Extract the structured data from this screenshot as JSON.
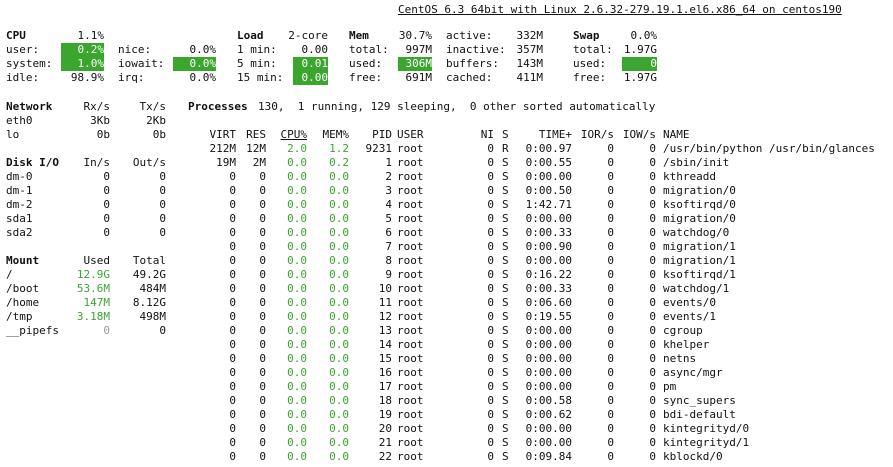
{
  "header": {
    "system_info": "CentOS 6.3 64bit with Linux 2.6.32-279.19.1.el6.x86_64 on centos190"
  },
  "cpu": {
    "title": "CPU",
    "total": "1.1%",
    "user_label": "user:",
    "user": "0.2%",
    "nice_label": "nice:",
    "nice": "0.0%",
    "system_label": "system:",
    "system": "1.0%",
    "iowait_label": "iowait:",
    "iowait": "0.0%",
    "idle_label": "idle:",
    "idle": "98.9%",
    "irq_label": "irq:",
    "irq": "0.0%"
  },
  "load": {
    "title": "Load",
    "cores": "2-core",
    "min1_label": "1 min:",
    "min1": "0.00",
    "min5_label": "5 min:",
    "min5": "0.01",
    "min15_label": "15 min:",
    "min15": "0.00"
  },
  "mem": {
    "title": "Mem",
    "percent": "30.7%",
    "total_label": "total:",
    "total": "997M",
    "used_label": "used:",
    "used": "306M",
    "free_label": "free:",
    "free": "691M",
    "active_label": "active:",
    "active": "332M",
    "inactive_label": "inactive:",
    "inactive": "357M",
    "buffers_label": "buffers:",
    "buffers": "143M",
    "cached_label": "cached:",
    "cached": "411M"
  },
  "swap": {
    "title": "Swap",
    "percent": "0.0%",
    "total_label": "total:",
    "total": "1.97G",
    "used_label": "used:",
    "used": "0",
    "free_label": "free:",
    "free": "1.97G"
  },
  "network": {
    "title": "Network",
    "rx_header": "Rx/s",
    "tx_header": "Tx/s",
    "rows": [
      {
        "name": "eth0",
        "rx": "3Kb",
        "tx": "2Kb"
      },
      {
        "name": "lo",
        "rx": "0b",
        "tx": "0b"
      }
    ]
  },
  "disk": {
    "title": "Disk I/O",
    "in_header": "In/s",
    "out_header": "Out/s",
    "rows": [
      {
        "name": "dm-0",
        "in": "0",
        "out": "0"
      },
      {
        "name": "dm-1",
        "in": "0",
        "out": "0"
      },
      {
        "name": "dm-2",
        "in": "0",
        "out": "0"
      },
      {
        "name": "sda1",
        "in": "0",
        "out": "0"
      },
      {
        "name": "sda2",
        "in": "0",
        "out": "0"
      }
    ]
  },
  "mount": {
    "title": "Mount",
    "used_header": "Used",
    "total_header": "Total",
    "rows": [
      {
        "name": "/",
        "used": "12.9G",
        "total": "49.2G"
      },
      {
        "name": "/boot",
        "used": "53.6M",
        "total": "484M"
      },
      {
        "name": "/home",
        "used": "147M",
        "total": "8.12G"
      },
      {
        "name": "/tmp",
        "used": "3.18M",
        "total": "498M"
      },
      {
        "name": "__pipefs",
        "used": "0",
        "total": "0"
      }
    ]
  },
  "processes": {
    "summary_label": "Processes",
    "summary": "130,  1 running, 129 sleeping,  0 other sorted automatically",
    "columns": {
      "virt": "VIRT",
      "res": "RES",
      "cpu": "CPU%",
      "mem": "MEM%",
      "pid": "PID",
      "user": "USER",
      "ni": "NI",
      "s": "S",
      "time": "TIME+",
      "ior": "IOR/s",
      "iow": "IOW/s",
      "name": "NAME"
    },
    "rows": [
      {
        "virt": "212M",
        "res": "12M",
        "cpu": "2.0",
        "mem": "1.2",
        "pid": "9231",
        "user": "root",
        "ni": "0",
        "s": "R",
        "time": "0:00.97",
        "ior": "0",
        "iow": "0",
        "name": "/usr/bin/python /usr/bin/glances"
      },
      {
        "virt": "19M",
        "res": "2M",
        "cpu": "0.0",
        "mem": "0.2",
        "pid": "1",
        "user": "root",
        "ni": "0",
        "s": "S",
        "time": "0:00.55",
        "ior": "0",
        "iow": "0",
        "name": "/sbin/init"
      },
      {
        "virt": "0",
        "res": "0",
        "cpu": "0.0",
        "mem": "0.0",
        "pid": "2",
        "user": "root",
        "ni": "0",
        "s": "S",
        "time": "0:00.00",
        "ior": "0",
        "iow": "0",
        "name": "kthreadd"
      },
      {
        "virt": "0",
        "res": "0",
        "cpu": "0.0",
        "mem": "0.0",
        "pid": "3",
        "user": "root",
        "ni": "0",
        "s": "S",
        "time": "0:00.50",
        "ior": "0",
        "iow": "0",
        "name": "migration/0"
      },
      {
        "virt": "0",
        "res": "0",
        "cpu": "0.0",
        "mem": "0.0",
        "pid": "4",
        "user": "root",
        "ni": "0",
        "s": "S",
        "time": "1:42.71",
        "ior": "0",
        "iow": "0",
        "name": "ksoftirqd/0"
      },
      {
        "virt": "0",
        "res": "0",
        "cpu": "0.0",
        "mem": "0.0",
        "pid": "5",
        "user": "root",
        "ni": "0",
        "s": "S",
        "time": "0:00.00",
        "ior": "0",
        "iow": "0",
        "name": "migration/0"
      },
      {
        "virt": "0",
        "res": "0",
        "cpu": "0.0",
        "mem": "0.0",
        "pid": "6",
        "user": "root",
        "ni": "0",
        "s": "S",
        "time": "0:00.33",
        "ior": "0",
        "iow": "0",
        "name": "watchdog/0"
      },
      {
        "virt": "0",
        "res": "0",
        "cpu": "0.0",
        "mem": "0.0",
        "pid": "7",
        "user": "root",
        "ni": "0",
        "s": "S",
        "time": "0:00.90",
        "ior": "0",
        "iow": "0",
        "name": "migration/1"
      },
      {
        "virt": "0",
        "res": "0",
        "cpu": "0.0",
        "mem": "0.0",
        "pid": "8",
        "user": "root",
        "ni": "0",
        "s": "S",
        "time": "0:00.00",
        "ior": "0",
        "iow": "0",
        "name": "migration/1"
      },
      {
        "virt": "0",
        "res": "0",
        "cpu": "0.0",
        "mem": "0.0",
        "pid": "9",
        "user": "root",
        "ni": "0",
        "s": "S",
        "time": "0:16.22",
        "ior": "0",
        "iow": "0",
        "name": "ksoftirqd/1"
      },
      {
        "virt": "0",
        "res": "0",
        "cpu": "0.0",
        "mem": "0.0",
        "pid": "10",
        "user": "root",
        "ni": "0",
        "s": "S",
        "time": "0:00.33",
        "ior": "0",
        "iow": "0",
        "name": "watchdog/1"
      },
      {
        "virt": "0",
        "res": "0",
        "cpu": "0.0",
        "mem": "0.0",
        "pid": "11",
        "user": "root",
        "ni": "0",
        "s": "S",
        "time": "0:06.60",
        "ior": "0",
        "iow": "0",
        "name": "events/0"
      },
      {
        "virt": "0",
        "res": "0",
        "cpu": "0.0",
        "mem": "0.0",
        "pid": "12",
        "user": "root",
        "ni": "0",
        "s": "S",
        "time": "0:19.55",
        "ior": "0",
        "iow": "0",
        "name": "events/1"
      },
      {
        "virt": "0",
        "res": "0",
        "cpu": "0.0",
        "mem": "0.0",
        "pid": "13",
        "user": "root",
        "ni": "0",
        "s": "S",
        "time": "0:00.00",
        "ior": "0",
        "iow": "0",
        "name": "cgroup"
      },
      {
        "virt": "0",
        "res": "0",
        "cpu": "0.0",
        "mem": "0.0",
        "pid": "14",
        "user": "root",
        "ni": "0",
        "s": "S",
        "time": "0:00.00",
        "ior": "0",
        "iow": "0",
        "name": "khelper"
      },
      {
        "virt": "0",
        "res": "0",
        "cpu": "0.0",
        "mem": "0.0",
        "pid": "15",
        "user": "root",
        "ni": "0",
        "s": "S",
        "time": "0:00.00",
        "ior": "0",
        "iow": "0",
        "name": "netns"
      },
      {
        "virt": "0",
        "res": "0",
        "cpu": "0.0",
        "mem": "0.0",
        "pid": "16",
        "user": "root",
        "ni": "0",
        "s": "S",
        "time": "0:00.00",
        "ior": "0",
        "iow": "0",
        "name": "async/mgr"
      },
      {
        "virt": "0",
        "res": "0",
        "cpu": "0.0",
        "mem": "0.0",
        "pid": "17",
        "user": "root",
        "ni": "0",
        "s": "S",
        "time": "0:00.00",
        "ior": "0",
        "iow": "0",
        "name": "pm"
      },
      {
        "virt": "0",
        "res": "0",
        "cpu": "0.0",
        "mem": "0.0",
        "pid": "18",
        "user": "root",
        "ni": "0",
        "s": "S",
        "time": "0:00.58",
        "ior": "0",
        "iow": "0",
        "name": "sync_supers"
      },
      {
        "virt": "0",
        "res": "0",
        "cpu": "0.0",
        "mem": "0.0",
        "pid": "19",
        "user": "root",
        "ni": "0",
        "s": "S",
        "time": "0:00.62",
        "ior": "0",
        "iow": "0",
        "name": "bdi-default"
      },
      {
        "virt": "0",
        "res": "0",
        "cpu": "0.0",
        "mem": "0.0",
        "pid": "20",
        "user": "root",
        "ni": "0",
        "s": "S",
        "time": "0:00.00",
        "ior": "0",
        "iow": "0",
        "name": "kintegrityd/0"
      },
      {
        "virt": "0",
        "res": "0",
        "cpu": "0.0",
        "mem": "0.0",
        "pid": "21",
        "user": "root",
        "ni": "0",
        "s": "S",
        "time": "0:00.00",
        "ior": "0",
        "iow": "0",
        "name": "kintegrityd/1"
      },
      {
        "virt": "0",
        "res": "0",
        "cpu": "0.0",
        "mem": "0.0",
        "pid": "22",
        "user": "root",
        "ni": "0",
        "s": "S",
        "time": "0:09.84",
        "ior": "0",
        "iow": "0",
        "name": "kblockd/0"
      }
    ]
  },
  "colors": {
    "ok_green": "#3aa62e",
    "text": "#111111",
    "background": "#ffffff"
  }
}
